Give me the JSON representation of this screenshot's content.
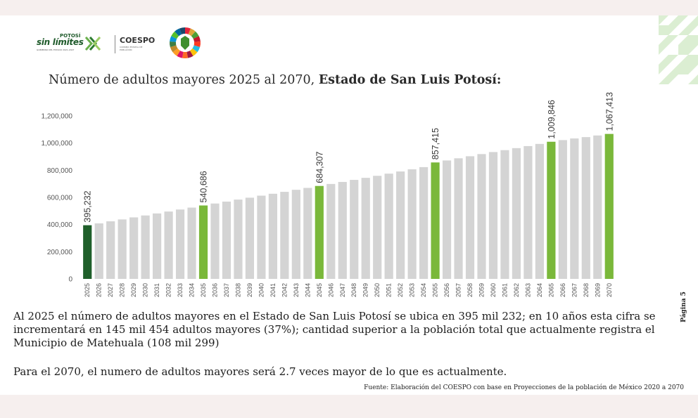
{
  "header": {
    "potosi_top": "POTOSÍ",
    "potosi_main": "sin límites",
    "potosi_sub": "GOBIERNO DEL ESTADO 2021-2027",
    "coespo": "COESPO",
    "coespo_sub": "CONSEJO ESTATAL DE POBLACIÓN"
  },
  "chart_data": {
    "type": "bar",
    "title_plain": "Número de adultos mayores 2025 al 2070, ",
    "title_bold": "Estado de San Luis Potosí:",
    "categories": [
      "2025",
      "2026",
      "2027",
      "2028",
      "2029",
      "2030",
      "2031",
      "2032",
      "2033",
      "2034",
      "2035",
      "2036",
      "2037",
      "2038",
      "2039",
      "2040",
      "2041",
      "2042",
      "2043",
      "2044",
      "2045",
      "2046",
      "2047",
      "2048",
      "2049",
      "2050",
      "2051",
      "2052",
      "2053",
      "2054",
      "2055",
      "2056",
      "2057",
      "2058",
      "2059",
      "2060",
      "2061",
      "2062",
      "2063",
      "2064",
      "2065",
      "2066",
      "2067",
      "2068",
      "2069",
      "2070"
    ],
    "values": [
      395232,
      409000,
      424000,
      438000,
      453000,
      467000,
      482000,
      496000,
      511000,
      525000,
      540686,
      555000,
      569000,
      584000,
      598000,
      613000,
      627000,
      641000,
      656000,
      670000,
      684307,
      699000,
      714000,
      729000,
      744000,
      759000,
      775000,
      791000,
      807000,
      823000,
      857415,
      872000,
      888000,
      903000,
      919000,
      934000,
      948000,
      963000,
      978000,
      994000,
      1009846,
      1022000,
      1034000,
      1044000,
      1056000,
      1067413
    ],
    "highlight_indices": [
      0,
      10,
      20,
      30,
      40,
      45
    ],
    "data_labels": {
      "0": "395,232",
      "10": "540,686",
      "20": "684,307",
      "30": "857,415",
      "40": "1,009,846",
      "45": "1,067,413"
    },
    "ylim": [
      0,
      1200000
    ],
    "yticks": [
      0,
      200000,
      400000,
      600000,
      800000,
      1000000,
      1200000
    ],
    "ytick_labels": [
      "0",
      "200,000",
      "400,000",
      "600,000",
      "800,000",
      "1,000,000",
      "1,200,000"
    ],
    "colors": {
      "first": "#1f5f2a",
      "highlight": "#7ab83a",
      "normal": "#d4d4d4"
    },
    "grid": false,
    "legend": "none"
  },
  "text": {
    "paragraph1": "Al 2025 el número de adultos mayores en el Estado de San Luis Potosí se ubica en 395 mil 232; en 10 años esta cifra se incrementará en 145 mil 454 adultos mayores (37%); cantidad superior a la población total que actualmente registra el Municipio de Matehuala (108 mil 299)",
    "paragraph2": "Para el 2070, el numero de adultos mayores será 2.7 veces mayor de lo que es actualmente.",
    "source": "Fuente: Elaboración del COESPO con base en Proyecciones de la población de México 2020 a 2070",
    "page_number": "Página 5"
  }
}
